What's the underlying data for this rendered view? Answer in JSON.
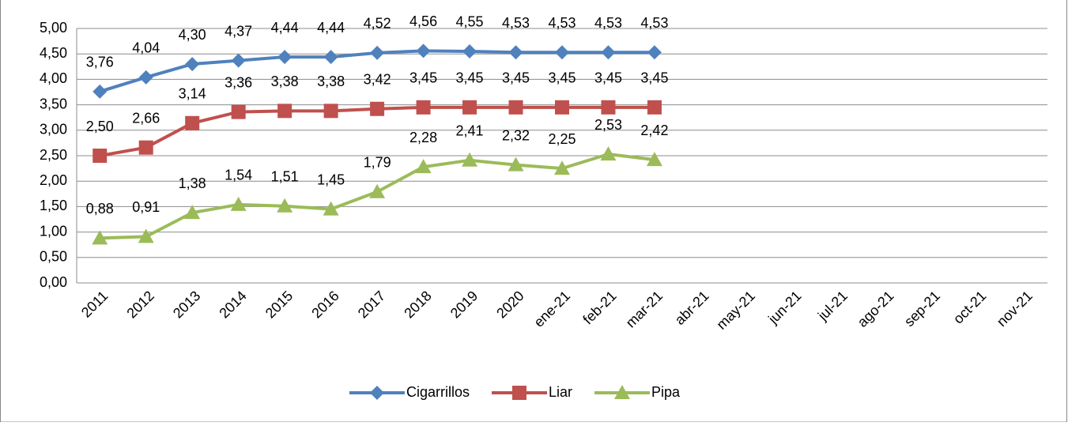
{
  "chart_data": {
    "type": "line",
    "categories": [
      "2011",
      "2012",
      "2013",
      "2014",
      "2015",
      "2016",
      "2017",
      "2018",
      "2019",
      "2020",
      "ene-21",
      "feb-21",
      "mar-21",
      "abr-21",
      "may-21",
      "jun-21",
      "jul-21",
      "ago-21",
      "sep-21",
      "oct-21",
      "nov-21"
    ],
    "series": [
      {
        "name": "Cigarrillos",
        "color": "#4f81bd",
        "marker": "diamond",
        "values": [
          3.76,
          4.04,
          4.3,
          4.37,
          4.44,
          4.44,
          4.52,
          4.56,
          4.55,
          4.53,
          4.53,
          4.53,
          4.53,
          null,
          null,
          null,
          null,
          null,
          null,
          null,
          null
        ],
        "value_labels": [
          "3,76",
          "4,04",
          "4,30",
          "4,37",
          "4,44",
          "4,44",
          "4,52",
          "4,56",
          "4,55",
          "4,53",
          "4,53",
          "4,53",
          "4,53",
          null,
          null,
          null,
          null,
          null,
          null,
          null,
          null
        ]
      },
      {
        "name": "Liar",
        "color": "#c0504d",
        "marker": "square",
        "values": [
          2.5,
          2.66,
          3.14,
          3.36,
          3.38,
          3.38,
          3.42,
          3.45,
          3.45,
          3.45,
          3.45,
          3.45,
          3.45,
          null,
          null,
          null,
          null,
          null,
          null,
          null,
          null
        ],
        "value_labels": [
          "2,50",
          "2,66",
          "3,14",
          "3,36",
          "3,38",
          "3,38",
          "3,42",
          "3,45",
          "3,45",
          "3,45",
          "3,45",
          "3,45",
          "3,45",
          null,
          null,
          null,
          null,
          null,
          null,
          null,
          null
        ]
      },
      {
        "name": "Pipa",
        "color": "#9bbb59",
        "marker": "triangle",
        "values": [
          0.88,
          0.91,
          1.38,
          1.54,
          1.51,
          1.45,
          1.79,
          2.28,
          2.41,
          2.32,
          2.25,
          2.53,
          2.42,
          null,
          null,
          null,
          null,
          null,
          null,
          null,
          null
        ],
        "value_labels": [
          "0,88",
          "0,91",
          "1,38",
          "1,54",
          "1,51",
          "1,45",
          "1,79",
          "2,28",
          "2,41",
          "2,32",
          "2,25",
          "2,53",
          "2,42",
          null,
          null,
          null,
          null,
          null,
          null,
          null,
          null
        ]
      }
    ],
    "ylim": [
      0,
      5
    ],
    "yticks": [
      {
        "value": 0,
        "label": "0,00"
      },
      {
        "value": 0.5,
        "label": "0,50"
      },
      {
        "value": 1,
        "label": "1,00"
      },
      {
        "value": 1.5,
        "label": "1,50"
      },
      {
        "value": 2,
        "label": "2,00"
      },
      {
        "value": 2.5,
        "label": "2,50"
      },
      {
        "value": 3,
        "label": "3,00"
      },
      {
        "value": 3.5,
        "label": "3,50"
      },
      {
        "value": 4,
        "label": "4,00"
      },
      {
        "value": 4.5,
        "label": "4,50"
      },
      {
        "value": 5,
        "label": "5,00"
      }
    ],
    "grid": true,
    "legend": "bottom"
  }
}
